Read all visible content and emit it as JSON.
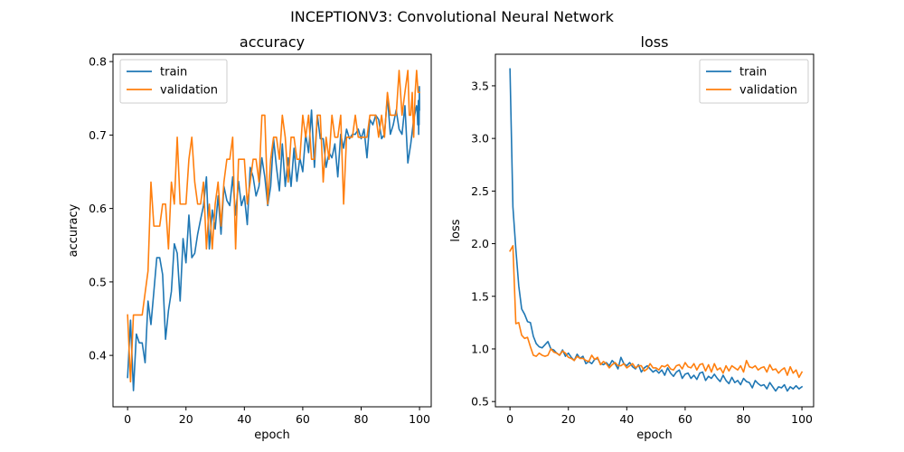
{
  "figure": {
    "title": "INCEPTIONV3: Convolutional Neural Network"
  },
  "colors": {
    "train": "#1f77b4",
    "validation": "#ff7f0e"
  },
  "chart_data": [
    {
      "type": "line",
      "title": "accuracy",
      "xlabel": "epoch",
      "ylabel": "accuracy",
      "xlim": [
        -5,
        104
      ],
      "ylim": [
        0.33,
        0.81
      ],
      "xticks": [
        0,
        20,
        40,
        60,
        80,
        100
      ],
      "yticks": [
        0.4,
        0.5,
        0.6,
        0.7,
        0.8
      ],
      "ytick_labels": [
        "0.4",
        "0.5",
        "0.6",
        "0.7",
        "0.8"
      ],
      "legend": "upper-left",
      "grid": false,
      "series": [
        {
          "name": "train",
          "color": "#1f77b4",
          "values": [
            0.37,
            0.448,
            0.352,
            0.429,
            0.417,
            0.417,
            0.39,
            0.474,
            0.442,
            0.487,
            0.533,
            0.533,
            0.51,
            0.422,
            0.461,
            0.487,
            0.552,
            0.539,
            0.474,
            0.559,
            0.526,
            0.591,
            0.533,
            0.539,
            0.565,
            0.585,
            0.604,
            0.643,
            0.545,
            0.598,
            0.572,
            0.617,
            0.565,
            0.63,
            0.611,
            0.604,
            0.643,
            0.591,
            0.637,
            0.604,
            0.617,
            0.578,
            0.656,
            0.643,
            0.617,
            0.63,
            0.669,
            0.643,
            0.604,
            0.63,
            0.695,
            0.656,
            0.624,
            0.688,
            0.63,
            0.669,
            0.63,
            0.682,
            0.637,
            0.669,
            0.65,
            0.701,
            0.676,
            0.734,
            0.656,
            0.727,
            0.695,
            0.695,
            0.656,
            0.676,
            0.669,
            0.688,
            0.643,
            0.701,
            0.682,
            0.708,
            0.695,
            0.701,
            0.701,
            0.708,
            0.695,
            0.708,
            0.669,
            0.721,
            0.714,
            0.727,
            0.721,
            0.695,
            0.701,
            0.753,
            0.701,
            0.714,
            0.734,
            0.708,
            0.701,
            0.74,
            0.662,
            0.688,
            0.721,
            0.74,
            0.734,
            0.714,
            0.727,
            0.747,
            0.701,
            0.747,
            0.714,
            0.74,
            0.766,
            0.734
          ],
          "x": [
            0,
            1,
            2,
            3,
            4,
            5,
            6,
            7,
            8,
            9,
            10,
            11,
            12,
            13,
            14,
            15,
            16,
            17,
            18,
            19,
            20,
            21,
            22,
            23,
            24,
            25,
            26,
            27,
            28,
            29,
            30,
            31,
            32,
            33,
            34,
            35,
            36,
            37,
            38,
            39,
            40,
            41,
            42,
            43,
            44,
            45,
            46,
            47,
            48,
            49,
            50,
            51,
            52,
            53,
            54,
            55,
            56,
            57,
            58,
            59,
            60,
            61,
            62,
            63,
            64,
            65,
            66,
            67,
            68,
            69,
            70,
            71,
            72,
            73,
            74,
            75,
            76,
            77,
            78,
            79,
            80,
            81,
            82,
            83,
            84,
            85,
            86,
            87,
            88,
            89,
            90,
            91,
            92,
            93,
            94,
            95,
            96,
            97,
            98,
            99,
            99.2,
            99.4,
            99.5,
            99.6,
            99.7,
            99.8,
            99.85,
            99.9,
            99.95,
            100
          ]
        },
        {
          "name": "validation",
          "color": "#ff7f0e",
          "values": [
            0.455,
            0.364,
            0.455,
            0.455,
            0.455,
            0.455,
            0.485,
            0.515,
            0.636,
            0.576,
            0.576,
            0.576,
            0.606,
            0.606,
            0.545,
            0.636,
            0.606,
            0.697,
            0.606,
            0.606,
            0.606,
            0.667,
            0.697,
            0.636,
            0.606,
            0.606,
            0.636,
            0.545,
            0.606,
            0.545,
            0.606,
            0.636,
            0.576,
            0.636,
            0.667,
            0.667,
            0.697,
            0.545,
            0.667,
            0.667,
            0.667,
            0.606,
            0.636,
            0.667,
            0.667,
            0.636,
            0.727,
            0.727,
            0.606,
            0.667,
            0.697,
            0.697,
            0.667,
            0.727,
            0.697,
            0.636,
            0.697,
            0.697,
            0.667,
            0.667,
            0.727,
            0.697,
            0.727,
            0.667,
            0.667,
            0.727,
            0.727,
            0.636,
            0.697,
            0.667,
            0.727,
            0.697,
            0.697,
            0.727,
            0.606,
            0.697,
            0.697,
            0.697,
            0.727,
            0.697,
            0.697,
            0.697,
            0.697,
            0.727,
            0.727,
            0.727,
            0.697,
            0.727,
            0.697,
            0.758,
            0.727,
            0.727,
            0.727,
            0.788,
            0.727,
            0.758,
            0.788,
            0.727,
            0.727,
            0.758,
            0.697,
            0.758,
            0.788,
            0.758,
            0.758
          ],
          "x": [
            0,
            1,
            2,
            3,
            4,
            5,
            6,
            7,
            8,
            9,
            10,
            11,
            12,
            13,
            14,
            15,
            16,
            17,
            18,
            19,
            20,
            21,
            22,
            23,
            24,
            25,
            26,
            27,
            28,
            29,
            30,
            31,
            32,
            33,
            34,
            35,
            36,
            37,
            38,
            39,
            40,
            41,
            42,
            43,
            44,
            45,
            46,
            47,
            48,
            49,
            50,
            51,
            52,
            53,
            54,
            55,
            56,
            57,
            58,
            59,
            60,
            61,
            62,
            63,
            64,
            65,
            66,
            67,
            68,
            69,
            70,
            71,
            72,
            73,
            74,
            75,
            76,
            77,
            78,
            79,
            80,
            81,
            82,
            83,
            84,
            85,
            86,
            87,
            88,
            89,
            90,
            91,
            92,
            93,
            94,
            95,
            96,
            96.5,
            97,
            97.5,
            98,
            98.5,
            99,
            99.5,
            100
          ]
        }
      ]
    },
    {
      "type": "line",
      "title": "loss",
      "xlabel": "epoch",
      "ylabel": "loss",
      "xlim": [
        -5,
        104
      ],
      "ylim": [
        0.45,
        3.8
      ],
      "xticks": [
        0,
        20,
        40,
        60,
        80,
        100
      ],
      "yticks": [
        0.5,
        1.0,
        1.5,
        2.0,
        2.5,
        3.0,
        3.5
      ],
      "ytick_labels": [
        "0.5",
        "1.0",
        "1.5",
        "2.0",
        "2.5",
        "3.0",
        "3.5"
      ],
      "legend": "upper-right",
      "grid": false,
      "series": [
        {
          "name": "train",
          "color": "#1f77b4",
          "x": [
            0,
            1,
            2,
            3,
            4,
            5,
            6,
            7,
            8,
            9,
            10,
            11,
            12,
            13,
            14,
            15,
            16,
            17,
            18,
            19,
            20,
            21,
            22,
            23,
            24,
            25,
            26,
            27,
            28,
            29,
            30,
            31,
            32,
            33,
            34,
            35,
            36,
            37,
            38,
            39,
            40,
            41,
            42,
            43,
            44,
            45,
            46,
            47,
            48,
            49,
            50,
            51,
            52,
            53,
            54,
            55,
            56,
            57,
            58,
            59,
            60,
            61,
            62,
            63,
            64,
            65,
            66,
            67,
            68,
            69,
            70,
            71,
            72,
            73,
            74,
            75,
            76,
            77,
            78,
            79,
            80,
            81,
            82,
            83,
            84,
            85,
            86,
            87,
            88,
            89,
            90,
            91,
            92,
            93,
            94,
            95,
            96,
            97,
            98,
            99,
            100
          ],
          "values": [
            3.66,
            2.35,
            1.95,
            1.6,
            1.38,
            1.33,
            1.26,
            1.25,
            1.12,
            1.05,
            1.02,
            1.01,
            1.04,
            1.07,
            1.0,
            0.99,
            0.96,
            0.94,
            0.99,
            0.93,
            0.96,
            0.92,
            0.89,
            0.95,
            0.91,
            0.93,
            0.86,
            0.88,
            0.86,
            0.9,
            0.91,
            0.86,
            0.85,
            0.87,
            0.84,
            0.89,
            0.86,
            0.81,
            0.92,
            0.86,
            0.84,
            0.87,
            0.83,
            0.81,
            0.85,
            0.78,
            0.82,
            0.84,
            0.81,
            0.78,
            0.8,
            0.77,
            0.8,
            0.75,
            0.82,
            0.77,
            0.74,
            0.78,
            0.8,
            0.72,
            0.76,
            0.77,
            0.72,
            0.75,
            0.71,
            0.77,
            0.78,
            0.7,
            0.74,
            0.72,
            0.76,
            0.72,
            0.69,
            0.75,
            0.7,
            0.67,
            0.73,
            0.68,
            0.7,
            0.66,
            0.72,
            0.69,
            0.68,
            0.63,
            0.7,
            0.67,
            0.65,
            0.66,
            0.62,
            0.68,
            0.64,
            0.6,
            0.64,
            0.63,
            0.66,
            0.6,
            0.64,
            0.62,
            0.65,
            0.62,
            0.64
          ]
        },
        {
          "name": "validation",
          "color": "#ff7f0e",
          "x": [
            0,
            1,
            2,
            3,
            4,
            5,
            6,
            7,
            8,
            9,
            10,
            11,
            12,
            13,
            14,
            15,
            16,
            17,
            18,
            19,
            20,
            21,
            22,
            23,
            24,
            25,
            26,
            27,
            28,
            29,
            30,
            31,
            32,
            33,
            34,
            35,
            36,
            37,
            38,
            39,
            40,
            41,
            42,
            43,
            44,
            45,
            46,
            47,
            48,
            49,
            50,
            51,
            52,
            53,
            54,
            55,
            56,
            57,
            58,
            59,
            60,
            61,
            62,
            63,
            64,
            65,
            66,
            67,
            68,
            69,
            70,
            71,
            72,
            73,
            74,
            75,
            76,
            77,
            78,
            79,
            80,
            81,
            82,
            83,
            84,
            85,
            86,
            87,
            88,
            89,
            90,
            91,
            92,
            93,
            94,
            95,
            96,
            97,
            98,
            99,
            100
          ],
          "values": [
            1.93,
            1.98,
            1.24,
            1.25,
            1.13,
            1.1,
            1.11,
            1.02,
            0.94,
            0.93,
            0.96,
            0.94,
            0.93,
            0.94,
            1.0,
            0.97,
            0.96,
            0.94,
            0.98,
            0.96,
            0.92,
            0.91,
            0.89,
            0.93,
            0.91,
            0.91,
            0.89,
            0.88,
            0.94,
            0.9,
            0.92,
            0.85,
            0.88,
            0.86,
            0.82,
            0.85,
            0.87,
            0.84,
            0.84,
            0.86,
            0.82,
            0.84,
            0.86,
            0.82,
            0.84,
            0.84,
            0.79,
            0.81,
            0.86,
            0.82,
            0.82,
            0.8,
            0.84,
            0.83,
            0.85,
            0.81,
            0.8,
            0.84,
            0.85,
            0.81,
            0.87,
            0.83,
            0.82,
            0.86,
            0.8,
            0.85,
            0.86,
            0.79,
            0.85,
            0.78,
            0.86,
            0.8,
            0.82,
            0.77,
            0.84,
            0.79,
            0.84,
            0.82,
            0.8,
            0.84,
            0.78,
            0.89,
            0.83,
            0.82,
            0.84,
            0.8,
            0.82,
            0.83,
            0.78,
            0.85,
            0.8,
            0.81,
            0.77,
            0.8,
            0.82,
            0.75,
            0.83,
            0.77,
            0.8,
            0.73,
            0.78
          ]
        }
      ]
    }
  ]
}
